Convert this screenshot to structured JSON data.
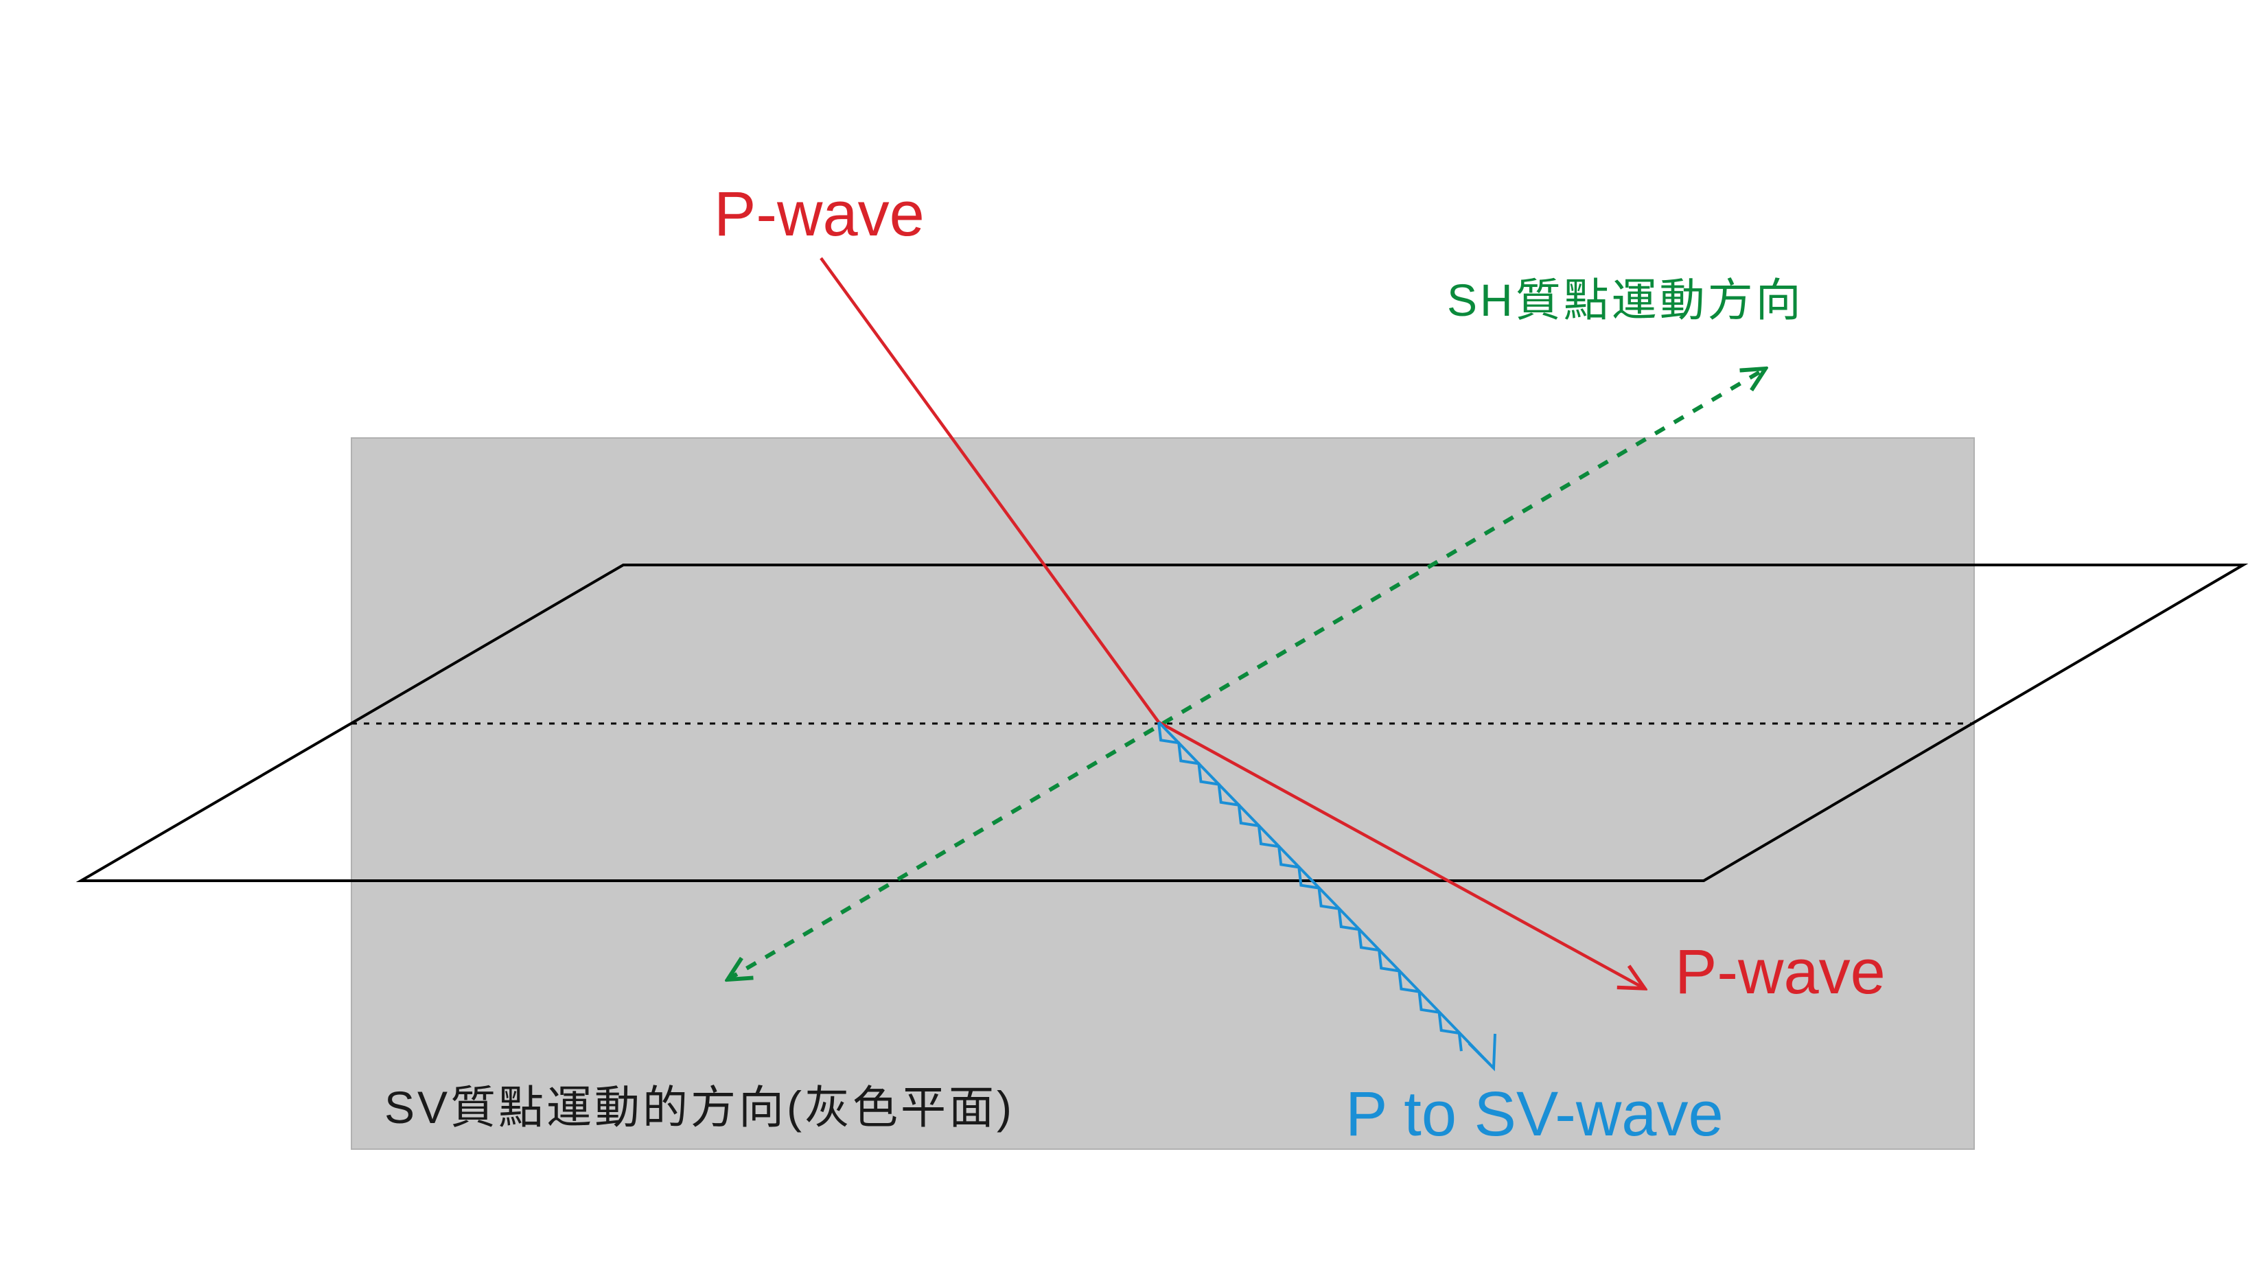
{
  "labels": {
    "p_wave_incident": "P-wave",
    "p_wave_refracted": "P-wave",
    "sh_direction": "SH質點運動方向",
    "sv_plane": "SV質點運動的方向(灰色平面)",
    "p_to_sv": "P to SV-wave"
  },
  "colors": {
    "p_wave": "#d9232a",
    "sh_arrow": "#0b8a3c",
    "sv_wave": "#1a8fd6",
    "gray_plane": "#c8c8c8",
    "interface_outline": "#000000",
    "sv_label": "#1a1a1a"
  }
}
